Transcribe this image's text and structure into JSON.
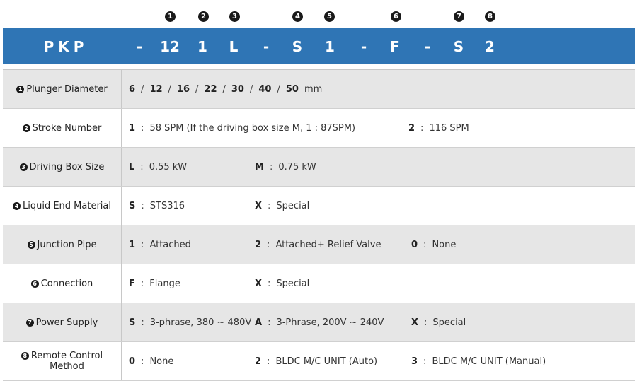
{
  "header_numbers": [
    "1",
    "2",
    "3",
    "4",
    "5",
    "6",
    "7",
    "8"
  ],
  "model_code": [
    "PKP",
    "-",
    "12",
    "1",
    "L",
    "-",
    "S",
    "1",
    "-",
    "F",
    "-",
    "S",
    "2"
  ],
  "colors": {
    "bar": "#2f75b5",
    "shade": "#e6e6e6",
    "circle": "#1a1a1a"
  },
  "rows": [
    {
      "num": "1",
      "label": "Plunger Diameter",
      "values": [
        "6",
        "12",
        "16",
        "22",
        "30",
        "40",
        "50"
      ],
      "separator": "/",
      "unit": "mm"
    },
    {
      "num": "2",
      "label": "Stroke Number",
      "options": [
        {
          "key": "1",
          "sep": ":",
          "text": "58 SPM (If the driving box size M, 1 : 87SPM)"
        },
        {
          "key": "2",
          "sep": ":",
          "text": "116 SPM"
        }
      ]
    },
    {
      "num": "3",
      "label": "Driving Box Size",
      "options": [
        {
          "key": "L",
          "sep": ":",
          "text": "0.55 kW"
        },
        {
          "key": "M",
          "sep": ":",
          "text": "0.75 kW"
        }
      ]
    },
    {
      "num": "4",
      "label": "Liquid End Material",
      "options": [
        {
          "key": "S",
          "sep": ":",
          "text": "STS316"
        },
        {
          "key": "X",
          "sep": ":",
          "text": "Special"
        }
      ]
    },
    {
      "num": "5",
      "label": "Junction Pipe",
      "options": [
        {
          "key": "1",
          "sep": ":",
          "text": "Attached"
        },
        {
          "key": "2",
          "sep": ":",
          "text": "Attached+ Relief Valve"
        },
        {
          "key": "0",
          "sep": ":",
          "text": "None"
        }
      ]
    },
    {
      "num": "6",
      "label": "Connection",
      "options": [
        {
          "key": "F",
          "sep": ":",
          "text": "Flange"
        },
        {
          "key": "X",
          "sep": ":",
          "text": "Special"
        }
      ]
    },
    {
      "num": "7",
      "label": "Power Supply",
      "options": [
        {
          "key": "S",
          "sep": ":",
          "text": "3-phrase, 380 ~ 480V"
        },
        {
          "key": "A",
          "sep": ":",
          "text": "3-Phrase, 200V ~ 240V"
        },
        {
          "key": "X",
          "sep": ":",
          "text": "Special"
        }
      ]
    },
    {
      "num": "8",
      "label_line1": "Remote Control",
      "label_line2": "Method",
      "options": [
        {
          "key": "0",
          "sep": ":",
          "text": "None"
        },
        {
          "key": "2",
          "sep": ":",
          "text": "BLDC M/C UNIT (Auto)"
        },
        {
          "key": "3",
          "sep": ":",
          "text": "BLDC M/C UNIT (Manual)"
        }
      ]
    }
  ]
}
